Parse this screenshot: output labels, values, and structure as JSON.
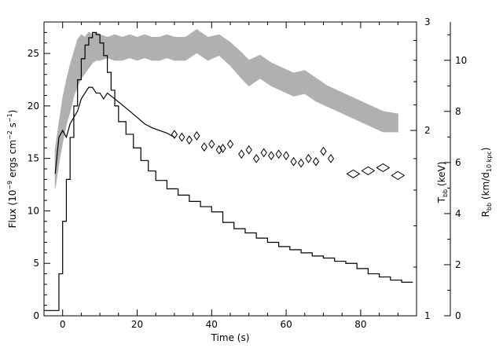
{
  "chart_data": {
    "type": "line",
    "xlabel": "Time (s)",
    "ylabel_left": [
      "Flux (10",
      "−9",
      " ergs cm",
      "−2",
      " s",
      "−1",
      ")"
    ],
    "ylabel_mid": [
      "T",
      "bb",
      " (keV)"
    ],
    "ylabel_right": [
      "R",
      "bb",
      " (km/d",
      "10 kpc",
      ")"
    ],
    "xlim": [
      -5,
      95
    ],
    "ylim_flux": [
      0,
      28
    ],
    "ylim_temp": [
      1,
      3
    ],
    "ylim_radius": [
      0,
      11.5
    ],
    "temp_scale": "log",
    "x_ticks": [
      0,
      20,
      40,
      60,
      80
    ],
    "flux_ticks": [
      0,
      5,
      10,
      15,
      20,
      25
    ],
    "temp_ticks": [
      1,
      2,
      3
    ],
    "radius_ticks": [
      0,
      2,
      4,
      6,
      8,
      10
    ],
    "colors": {
      "flux": "#000000",
      "temp": "#000000",
      "radius": "#b0b0b0"
    },
    "series": [
      {
        "role": "flux",
        "style": "step",
        "x": [
          -5,
          -2,
          -1,
          0,
          1,
          2,
          3,
          4,
          5,
          6,
          7,
          8,
          9,
          10,
          11,
          12,
          13,
          14,
          15,
          17,
          19,
          21,
          23,
          25,
          28,
          31,
          34,
          37,
          40,
          43,
          46,
          49,
          52,
          55,
          58,
          61,
          64,
          67,
          70,
          73,
          76,
          79,
          82,
          85,
          88,
          91,
          94
        ],
        "y": [
          0.5,
          0.5,
          4,
          9,
          13,
          17,
          20,
          22.5,
          24.5,
          25.8,
          26.5,
          27,
          26.8,
          26,
          24.8,
          23.2,
          21.5,
          20,
          18.5,
          17.3,
          16,
          14.8,
          13.8,
          12.9,
          12.1,
          11.5,
          10.9,
          10.4,
          9.9,
          8.9,
          8.3,
          7.9,
          7.4,
          7.0,
          6.6,
          6.3,
          6.0,
          5.7,
          5.5,
          5.2,
          5.0,
          4.5,
          4.0,
          3.7,
          3.4,
          3.2,
          3.2
        ]
      },
      {
        "role": "temp",
        "style": "line",
        "x": [
          -2,
          -1,
          0,
          1,
          2,
          3,
          4,
          5,
          6,
          7,
          8,
          9,
          10,
          11,
          12,
          14,
          16,
          18,
          20,
          22,
          24,
          26,
          28,
          30
        ],
        "y": [
          1.7,
          1.95,
          2.0,
          1.95,
          2.05,
          2.1,
          2.15,
          2.25,
          2.3,
          2.35,
          2.35,
          2.3,
          2.3,
          2.25,
          2.3,
          2.25,
          2.2,
          2.15,
          2.1,
          2.05,
          2.02,
          2.0,
          1.98,
          1.95
        ]
      },
      {
        "role": "temp",
        "style": "diamond",
        "x": [
          30,
          32,
          34,
          36,
          38,
          40,
          42,
          43,
          45,
          48,
          50,
          52,
          54,
          56,
          58,
          60,
          62,
          64,
          66,
          68,
          70,
          72,
          78,
          82,
          86,
          90
        ],
        "y": [
          1.97,
          1.95,
          1.93,
          1.96,
          1.88,
          1.9,
          1.86,
          1.87,
          1.9,
          1.83,
          1.86,
          1.8,
          1.84,
          1.82,
          1.83,
          1.82,
          1.78,
          1.77,
          1.8,
          1.78,
          1.85,
          1.8,
          1.7,
          1.72,
          1.74,
          1.69
        ]
      },
      {
        "role": "radius",
        "style": "band",
        "x": [
          -2,
          -1,
          0,
          1,
          2,
          3,
          4,
          5,
          6,
          7,
          8,
          9,
          10,
          12,
          14,
          16,
          18,
          20,
          22,
          24,
          26,
          28,
          30,
          33,
          36,
          39,
          42,
          45,
          48,
          50,
          53,
          56,
          59,
          62,
          65,
          68,
          71,
          74,
          77,
          80,
          83,
          86,
          90
        ],
        "y_low": [
          5.0,
          6.0,
          6.8,
          7.5,
          8.0,
          8.6,
          9.0,
          9.3,
          9.5,
          9.7,
          9.9,
          10.0,
          10.0,
          10.1,
          10.0,
          10.0,
          10.1,
          10.0,
          10.1,
          10.0,
          10.0,
          10.1,
          10.0,
          10.0,
          10.3,
          10.0,
          10.2,
          9.8,
          9.3,
          9.0,
          9.3,
          9.0,
          8.8,
          8.6,
          8.7,
          8.4,
          8.2,
          8.0,
          7.8,
          7.6,
          7.4,
          7.2,
          7.2
        ],
        "y_high": [
          6.5,
          7.5,
          8.5,
          9.2,
          9.8,
          10.3,
          10.8,
          11.0,
          10.9,
          11.1,
          11.0,
          11.1,
          11.0,
          10.9,
          11.0,
          10.9,
          11.0,
          10.9,
          11.0,
          10.9,
          10.9,
          11.0,
          10.9,
          10.9,
          11.2,
          10.9,
          11.0,
          10.7,
          10.3,
          10.0,
          10.2,
          9.9,
          9.7,
          9.5,
          9.6,
          9.3,
          9.0,
          8.8,
          8.6,
          8.4,
          8.2,
          8.0,
          7.9
        ]
      }
    ]
  }
}
